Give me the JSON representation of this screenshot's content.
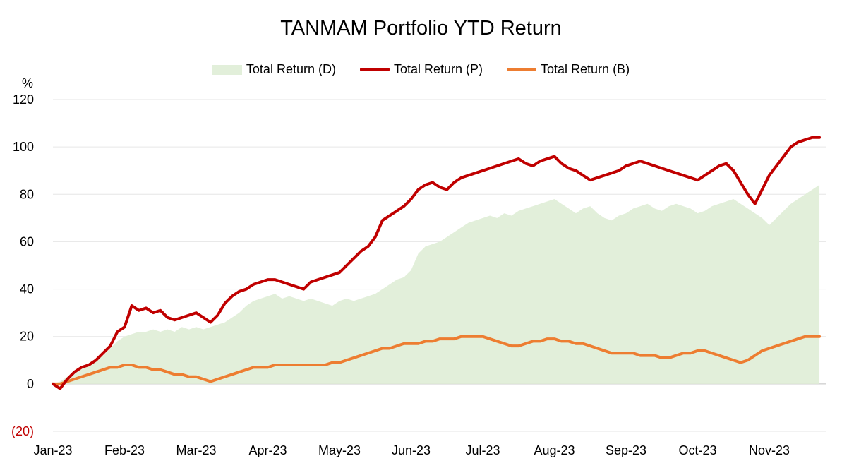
{
  "chart_data": {
    "type": "line",
    "title": "TANMAM Portfolio YTD Return",
    "ylabel": "%",
    "ylim": [
      -20,
      120
    ],
    "yticks": [
      {
        "value": 120,
        "label": "120"
      },
      {
        "value": 100,
        "label": "100"
      },
      {
        "value": 80,
        "label": "80"
      },
      {
        "value": 60,
        "label": "60"
      },
      {
        "value": 40,
        "label": "40"
      },
      {
        "value": 20,
        "label": "20"
      },
      {
        "value": 0,
        "label": "0"
      },
      {
        "value": -20,
        "label": "(20)"
      }
    ],
    "x_tick_labels": [
      "Jan-23",
      "Feb-23",
      "Mar-23",
      "Apr-23",
      "May-23",
      "Jun-23",
      "Jul-23",
      "Aug-23",
      "Sep-23",
      "Oct-23",
      "Nov-23"
    ],
    "grid": true,
    "legend_position": "top",
    "x_month_index": [
      0,
      0.1,
      0.2,
      0.3,
      0.4,
      0.5,
      0.6,
      0.7,
      0.8,
      0.9,
      1.0,
      1.1,
      1.2,
      1.3,
      1.4,
      1.5,
      1.6,
      1.7,
      1.8,
      1.9,
      2.0,
      2.1,
      2.2,
      2.3,
      2.4,
      2.5,
      2.6,
      2.7,
      2.8,
      2.9,
      3.0,
      3.1,
      3.2,
      3.3,
      3.4,
      3.5,
      3.6,
      3.7,
      3.8,
      3.9,
      4.0,
      4.1,
      4.2,
      4.3,
      4.4,
      4.5,
      4.6,
      4.7,
      4.8,
      4.9,
      5.0,
      5.1,
      5.2,
      5.3,
      5.4,
      5.5,
      5.6,
      5.7,
      5.8,
      5.9,
      6.0,
      6.1,
      6.2,
      6.3,
      6.4,
      6.5,
      6.6,
      6.7,
      6.8,
      6.9,
      7.0,
      7.1,
      7.2,
      7.3,
      7.4,
      7.5,
      7.6,
      7.7,
      7.8,
      7.9,
      8.0,
      8.1,
      8.2,
      8.3,
      8.4,
      8.5,
      8.6,
      8.7,
      8.8,
      8.9,
      9.0,
      9.1,
      9.2,
      9.3,
      9.4,
      9.5,
      9.6,
      9.7,
      9.8,
      9.9,
      10.0,
      10.1,
      10.2,
      10.3,
      10.4,
      10.5,
      10.6,
      10.7
    ],
    "series": [
      {
        "name": "Total Return (D)",
        "kind": "area",
        "color": "#e2efda",
        "values": [
          0,
          1,
          3,
          5,
          7,
          8,
          10,
          12,
          15,
          18,
          20,
          21,
          22,
          22,
          23,
          22,
          23,
          22,
          24,
          23,
          24,
          23,
          24,
          25,
          26,
          28,
          30,
          33,
          35,
          36,
          37,
          38,
          36,
          37,
          36,
          35,
          36,
          35,
          34,
          33,
          35,
          36,
          35,
          36,
          37,
          38,
          40,
          42,
          44,
          45,
          48,
          55,
          58,
          59,
          60,
          62,
          64,
          66,
          68,
          69,
          70,
          71,
          70,
          72,
          71,
          73,
          74,
          75,
          76,
          77,
          78,
          76,
          74,
          72,
          74,
          75,
          72,
          70,
          69,
          71,
          72,
          74,
          75,
          76,
          74,
          73,
          75,
          76,
          75,
          74,
          72,
          73,
          75,
          76,
          77,
          78,
          76,
          74,
          72,
          70,
          67,
          70,
          73,
          76,
          78,
          80,
          82,
          84
        ]
      },
      {
        "name": "Total Return (P)",
        "kind": "line",
        "color": "#c00000",
        "values": [
          0,
          -2,
          2,
          5,
          7,
          8,
          10,
          13,
          16,
          22,
          24,
          33,
          31,
          32,
          30,
          31,
          28,
          27,
          28,
          29,
          30,
          28,
          26,
          29,
          34,
          37,
          39,
          40,
          42,
          43,
          44,
          44,
          43,
          42,
          41,
          40,
          43,
          44,
          45,
          46,
          47,
          50,
          53,
          56,
          58,
          62,
          69,
          71,
          73,
          75,
          78,
          82,
          84,
          85,
          83,
          82,
          85,
          87,
          88,
          89,
          90,
          91,
          92,
          93,
          94,
          95,
          93,
          92,
          94,
          95,
          96,
          93,
          91,
          90,
          88,
          86,
          87,
          88,
          89,
          90,
          92,
          93,
          94,
          93,
          92,
          91,
          90,
          89,
          88,
          87,
          86,
          88,
          90,
          92,
          93,
          90,
          85,
          80,
          76,
          82,
          88,
          92,
          96,
          100,
          102,
          103,
          104,
          104
        ]
      },
      {
        "name": "Total Return (B)",
        "kind": "line",
        "color": "#ed7d31",
        "values": [
          0,
          0,
          1,
          2,
          3,
          4,
          5,
          6,
          7,
          7,
          8,
          8,
          7,
          7,
          6,
          6,
          5,
          4,
          4,
          3,
          3,
          2,
          1,
          2,
          3,
          4,
          5,
          6,
          7,
          7,
          7,
          8,
          8,
          8,
          8,
          8,
          8,
          8,
          8,
          9,
          9,
          10,
          11,
          12,
          13,
          14,
          15,
          15,
          16,
          17,
          17,
          17,
          18,
          18,
          19,
          19,
          19,
          20,
          20,
          20,
          20,
          19,
          18,
          17,
          16,
          16,
          17,
          18,
          18,
          19,
          19,
          18,
          18,
          17,
          17,
          16,
          15,
          14,
          13,
          13,
          13,
          13,
          12,
          12,
          12,
          11,
          11,
          12,
          13,
          13,
          14,
          14,
          13,
          12,
          11,
          10,
          9,
          10,
          12,
          14,
          15,
          16,
          17,
          18,
          19,
          20,
          20,
          20
        ]
      }
    ]
  }
}
